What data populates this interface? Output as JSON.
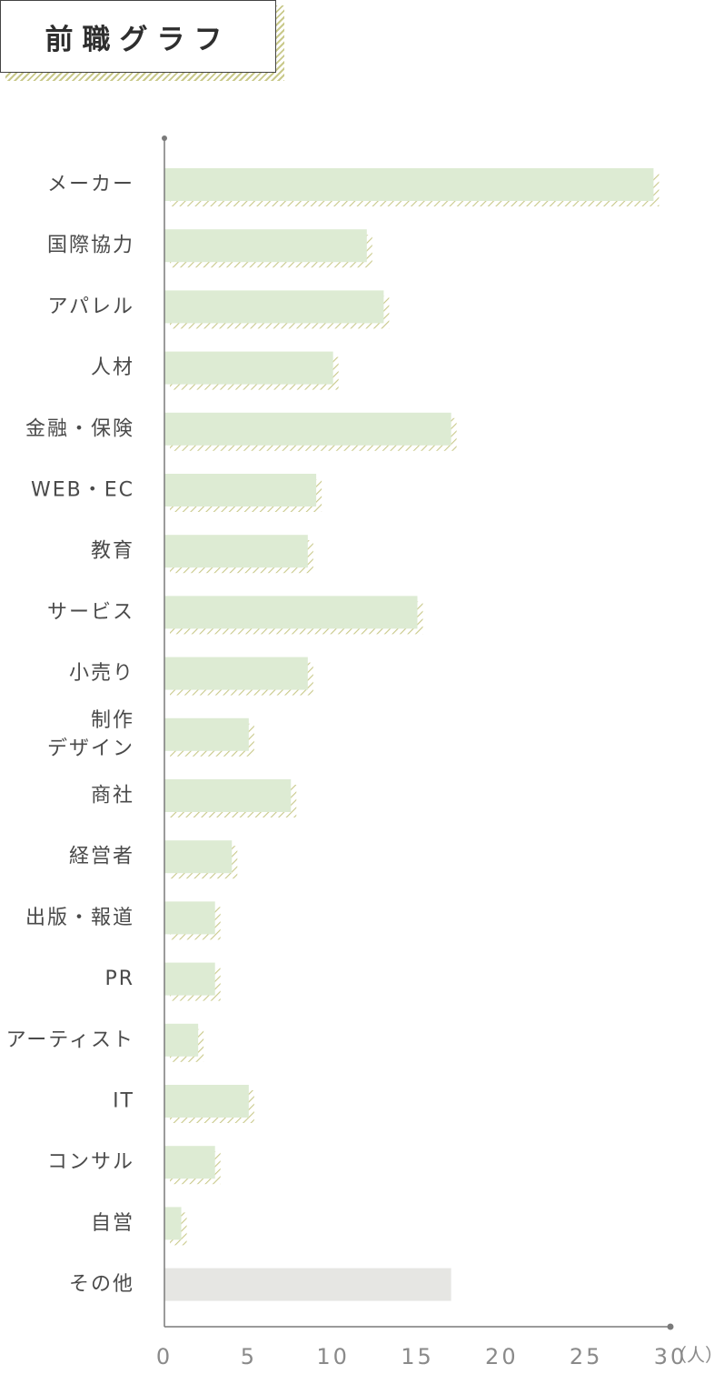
{
  "title": "前職グラフ",
  "chart_data": {
    "type": "bar",
    "orientation": "horizontal",
    "title": "前職グラフ",
    "unit_label": "（人）",
    "xlim": [
      0,
      30
    ],
    "xticks": [
      0,
      5,
      10,
      15,
      20,
      25,
      30
    ],
    "grid": false,
    "categories": [
      "メーカー",
      "国際協力",
      "アパレル",
      "人材",
      "金融・保険",
      "WEB・EC",
      "教育",
      "サービス",
      "小売り",
      "制作\nデザイン",
      "商社",
      "経営者",
      "出版・報道",
      "PR",
      "アーティスト",
      "IT",
      "コンサル",
      "自営",
      "その他"
    ],
    "values": [
      29,
      12,
      13,
      10,
      17,
      9,
      8.5,
      15,
      8.5,
      5,
      7.5,
      4,
      3,
      3,
      2,
      5,
      3,
      1,
      17
    ],
    "colors": {
      "bar": "#ddebd3",
      "bar_other": "#e6e6e3",
      "hatch": "#c9c98a",
      "axis": "#7a7a7a",
      "label": "#4a4a4a",
      "tick": "#8a8a8a"
    }
  }
}
